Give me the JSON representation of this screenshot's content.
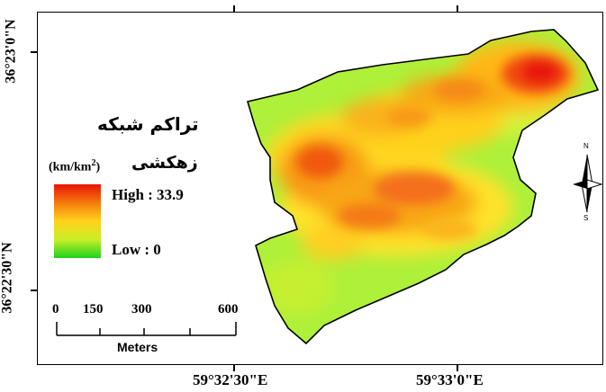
{
  "map": {
    "title_line1": "تراکم شبکه",
    "title_line2": "زهکشی",
    "unit": "(km/km",
    "unit_sup": "2",
    "unit_close": ")",
    "legend_high": "High : 33.9",
    "legend_low": "Low : 0",
    "lat_labels": [
      "36°23'0\"N",
      "36°22'30\"N"
    ],
    "lon_labels": [
      "59°32'30\"E",
      "59°33'0\"E"
    ],
    "scale_bar": {
      "ticks": [
        "0",
        "150",
        "300",
        "600"
      ],
      "unit": "Meters"
    },
    "north_arrow": {
      "top_letter": "N",
      "bottom_letter": "S"
    },
    "colors": {
      "high": "#e8140a",
      "mid": "#ffd21a",
      "low": "#1ed21e"
    }
  }
}
